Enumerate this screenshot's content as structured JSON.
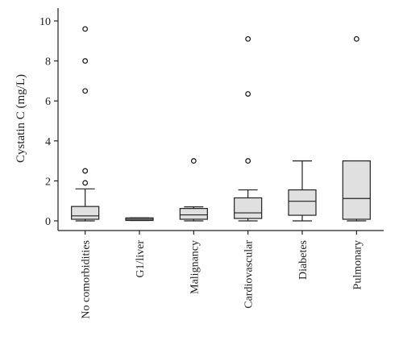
{
  "chart_data": {
    "type": "box",
    "title": "",
    "xlabel": "",
    "ylabel": "Cystatin C (mg/L)",
    "ylim": [
      0,
      10
    ],
    "yticks": [
      "0",
      "2",
      "4",
      "6",
      "8",
      "10"
    ],
    "categories": [
      "No comorbidities",
      "G1/liver",
      "Malignancy",
      "Cardiovascular",
      "Diabetes",
      "Pulmonary"
    ],
    "boxes": [
      {
        "whisker_low": 0.0,
        "q1": 0.08,
        "median": 0.25,
        "q3": 0.72,
        "whisker_high": 1.6,
        "outliers": [
          1.9,
          2.5,
          6.5,
          8.0,
          9.6
        ]
      },
      {
        "whisker_low": 0.02,
        "q1": 0.02,
        "median": 0.08,
        "q3": 0.15,
        "whisker_high": 0.15,
        "outliers": []
      },
      {
        "whisker_low": 0.0,
        "q1": 0.08,
        "median": 0.3,
        "q3": 0.62,
        "whisker_high": 0.7,
        "outliers": [
          3.0
        ]
      },
      {
        "whisker_low": 0.0,
        "q1": 0.12,
        "median": 0.4,
        "q3": 1.15,
        "whisker_high": 1.55,
        "outliers": [
          3.0,
          6.35,
          9.1
        ]
      },
      {
        "whisker_low": 0.0,
        "q1": 0.28,
        "median": 0.98,
        "q3": 1.55,
        "whisker_high": 3.0,
        "outliers": []
      },
      {
        "whisker_low": 0.0,
        "q1": 0.08,
        "median": 1.12,
        "q3": 3.0,
        "whisker_high": 3.0,
        "outliers": [
          9.1
        ]
      }
    ],
    "box_fill": "#e0e0e0",
    "line_color": "#222222",
    "grid": false,
    "legend": "none"
  }
}
